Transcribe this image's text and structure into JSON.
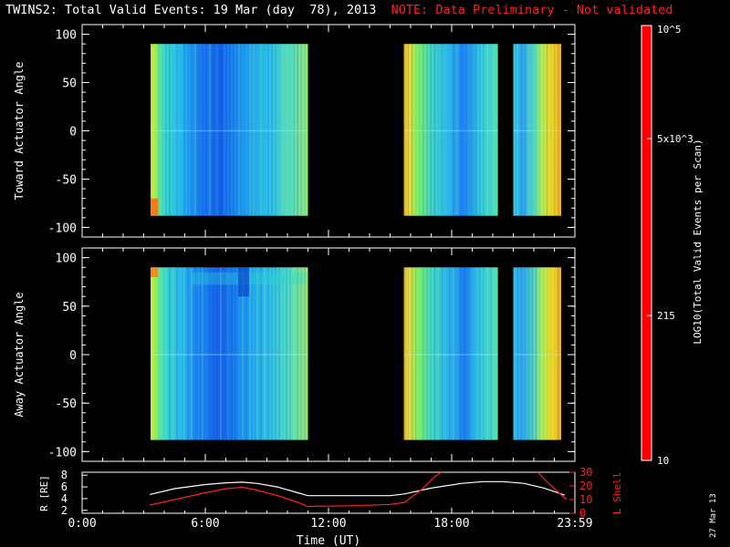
{
  "header": {
    "title": "TWINS2: Total Valid Events: 19 Mar (day  78), 2013",
    "note": "NOTE: Data Preliminary - Not validated"
  },
  "side_stamp": "27 Mar 13",
  "colors": {
    "background": "#000000",
    "axes": "#ffffff",
    "note": "#ff2020",
    "r_curve": "#ffffff",
    "lshell_curve": "#ff2020"
  },
  "chart_data": [
    {
      "type": "heatmap",
      "name": "toward-actuator-angle",
      "ylabel": "Toward Actuator Angle",
      "ylim": [
        -110,
        110
      ],
      "yticks": [
        "100",
        "50",
        "0",
        "-50",
        "-100"
      ],
      "xlim_hours": [
        0,
        24
      ],
      "data_y_range": [
        -88,
        90
      ],
      "color_scale": "log",
      "segments": [
        {
          "start": "3:20",
          "end": "11:00"
        },
        {
          "start": "15:40",
          "end": "20:15"
        },
        {
          "start": "21:00",
          "end": "23:20"
        }
      ]
    },
    {
      "type": "heatmap",
      "name": "away-actuator-angle",
      "ylabel": "Away Actuator Angle",
      "ylim": [
        -110,
        110
      ],
      "yticks": [
        "100",
        "50",
        "0",
        "-50",
        "-100"
      ],
      "xlim_hours": [
        0,
        24
      ],
      "data_y_range": [
        -88,
        90
      ],
      "color_scale": "log",
      "segments": [
        {
          "start": "3:20",
          "end": "11:00"
        },
        {
          "start": "15:40",
          "end": "20:15"
        },
        {
          "start": "21:00",
          "end": "23:20"
        }
      ]
    },
    {
      "type": "line",
      "name": "orbit",
      "xlabel": "Time (UT)",
      "xticks": [
        "0:00",
        "6:00",
        "12:00",
        "18:00",
        "23:59"
      ],
      "y_left": {
        "label": "R [RE]",
        "ticks": [
          "8",
          "6",
          "4",
          "2"
        ],
        "lim": [
          1.5,
          8.5
        ]
      },
      "y_right": {
        "label": "L Shell",
        "ticks": [
          "30",
          "20",
          "10",
          "0"
        ],
        "lim": [
          0,
          30
        ]
      },
      "series": [
        {
          "axis": "left",
          "x": [
            3.3,
            4.5,
            6.0,
            7.0,
            7.8,
            8.5,
            9.5,
            10.5,
            11.0,
            13.0,
            15.0,
            15.7,
            17.0,
            18.5,
            19.5,
            20.5,
            21.5,
            22.5,
            23.5
          ],
          "y": [
            4.7,
            5.7,
            6.4,
            6.7,
            6.8,
            6.6,
            6.0,
            5.0,
            4.5,
            4.5,
            4.5,
            4.8,
            5.8,
            6.6,
            6.9,
            6.9,
            6.6,
            5.8,
            4.6
          ]
        },
        {
          "axis": "right",
          "x": [
            3.3,
            4.5,
            6.0,
            7.0,
            7.8,
            8.5,
            9.5,
            10.5,
            11.0,
            13.0,
            15.0,
            15.7,
            16.5,
            17.2,
            17.5
          ],
          "y": [
            6,
            10,
            15,
            18,
            19,
            17,
            13,
            8,
            5,
            5.5,
            6.5,
            8,
            17,
            27,
            30
          ]
        },
        {
          "axis": "right",
          "x": [
            22.2,
            22.5,
            23.0,
            23.6
          ],
          "y": [
            30,
            25,
            18,
            10
          ]
        }
      ]
    }
  ],
  "colorbar": {
    "label": "LOG10(Total Valid Events per Scan)",
    "ticks": [
      "10^5",
      "5x10^3",
      "215",
      "10"
    ],
    "tick_fracs": [
      1.0,
      0.74,
      0.333,
      0.0
    ],
    "colors": [
      "#ff0000",
      "#ff8000",
      "#ffd000",
      "#c8ff00",
      "#00ff80",
      "#00ffff",
      "#00c8ff",
      "#0064ff",
      "#0000ff",
      "#0000a0"
    ]
  }
}
